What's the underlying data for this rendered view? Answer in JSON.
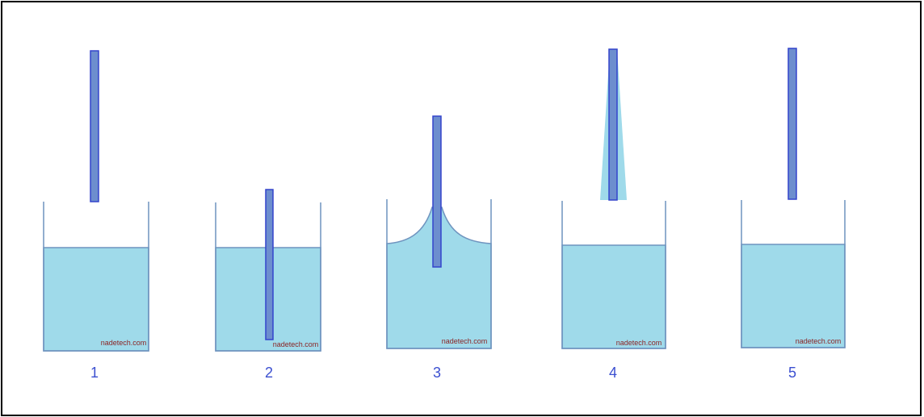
{
  "panels": [
    {
      "label": "1",
      "watermark": "nadetech.com"
    },
    {
      "label": "2",
      "watermark": "nadetech.com"
    },
    {
      "label": "3",
      "watermark": "nadetech.com"
    },
    {
      "label": "4",
      "watermark": "nadetech.com"
    },
    {
      "label": "5",
      "watermark": "nadetech.com"
    }
  ]
}
